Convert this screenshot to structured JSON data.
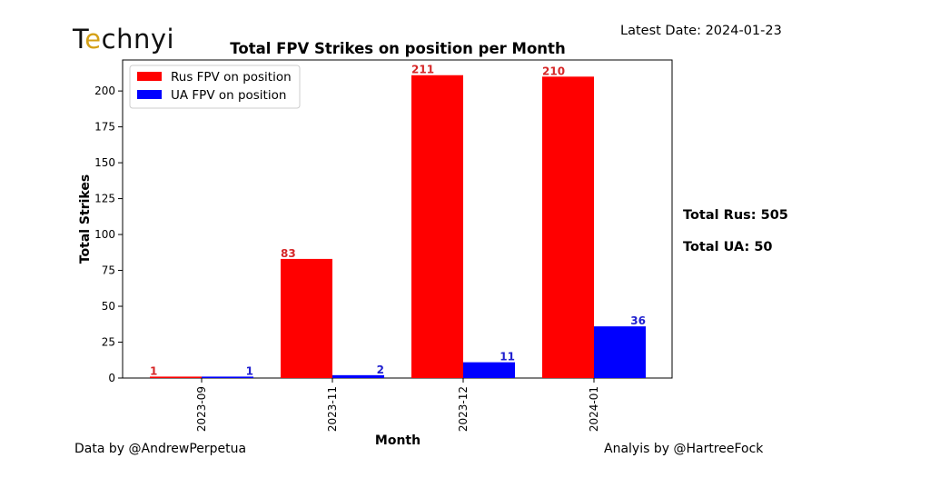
{
  "brand": {
    "logo_text": "Technyi"
  },
  "header": {
    "latest_date": "Latest Date: 2024-01-23"
  },
  "summary": {
    "total_rus": "Total Rus: 505",
    "total_ua": "Total UA: 50"
  },
  "footer": {
    "data_by": "Data by @AndrewPerpetua",
    "analysis_by": "Analyis by @HartreeFock"
  },
  "colors": {
    "rus": "#ff0000",
    "ua": "#0000ff",
    "rus_label": "#d62728",
    "ua_label": "#1f1fcf"
  },
  "chart_data": {
    "type": "bar",
    "title": "Total FPV Strikes on position per Month",
    "xlabel": "Month",
    "ylabel": "Total Strikes",
    "categories": [
      "2023-09",
      "2023-11",
      "2023-12",
      "2024-01"
    ],
    "series": [
      {
        "name": "Rus FPV on position",
        "values": [
          1,
          83,
          211,
          210
        ]
      },
      {
        "name": "UA FPV on position",
        "values": [
          1,
          2,
          11,
          36
        ]
      }
    ],
    "yticks": [
      0,
      25,
      50,
      75,
      100,
      125,
      150,
      175,
      200
    ],
    "ylim": [
      0,
      221.6
    ],
    "legend": "top-left",
    "grid": false
  }
}
